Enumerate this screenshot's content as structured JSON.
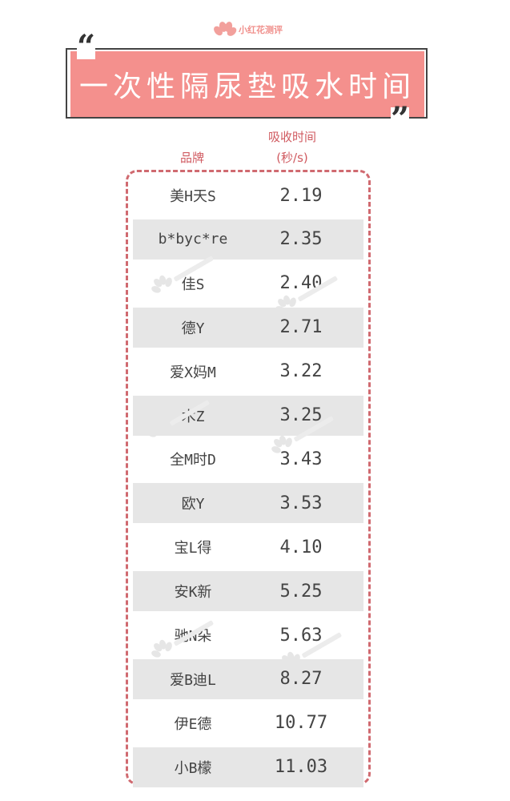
{
  "logo": {
    "text": "小红花测评"
  },
  "title": "一次性隔尿垫吸水时间",
  "colors": {
    "accent": "#f4908d",
    "header_text": "#d05a60",
    "border": "#d06a70",
    "alt_row": "#e6e6e6"
  },
  "chart_data": {
    "type": "table",
    "title": "一次性隔尿垫吸水时间",
    "columns": [
      "品牌",
      "吸收时间 (秒/s)"
    ],
    "header": {
      "brand": "品牌",
      "time_line1": "吸收时间",
      "time_line2": "(秒/s)"
    },
    "rows": [
      {
        "brand": "美H天S",
        "time": "2.19"
      },
      {
        "brand": "b*byc*re",
        "time": "2.35"
      },
      {
        "brand": "佳S",
        "time": "2.40"
      },
      {
        "brand": "德Y",
        "time": "2.71"
      },
      {
        "brand": "爱X妈M",
        "time": "3.22"
      },
      {
        "brand": "木Z",
        "time": "3.25"
      },
      {
        "brand": "全M时D",
        "time": "3.43"
      },
      {
        "brand": "欧Y",
        "time": "3.53"
      },
      {
        "brand": "宝L得",
        "time": "4.10"
      },
      {
        "brand": "安K新",
        "time": "5.25"
      },
      {
        "brand": "驰N朵",
        "time": "5.63"
      },
      {
        "brand": "爱B迪L",
        "time": "8.27"
      },
      {
        "brand": "伊E德",
        "time": "10.77"
      },
      {
        "brand": "小B檬",
        "time": "11.03"
      }
    ]
  }
}
